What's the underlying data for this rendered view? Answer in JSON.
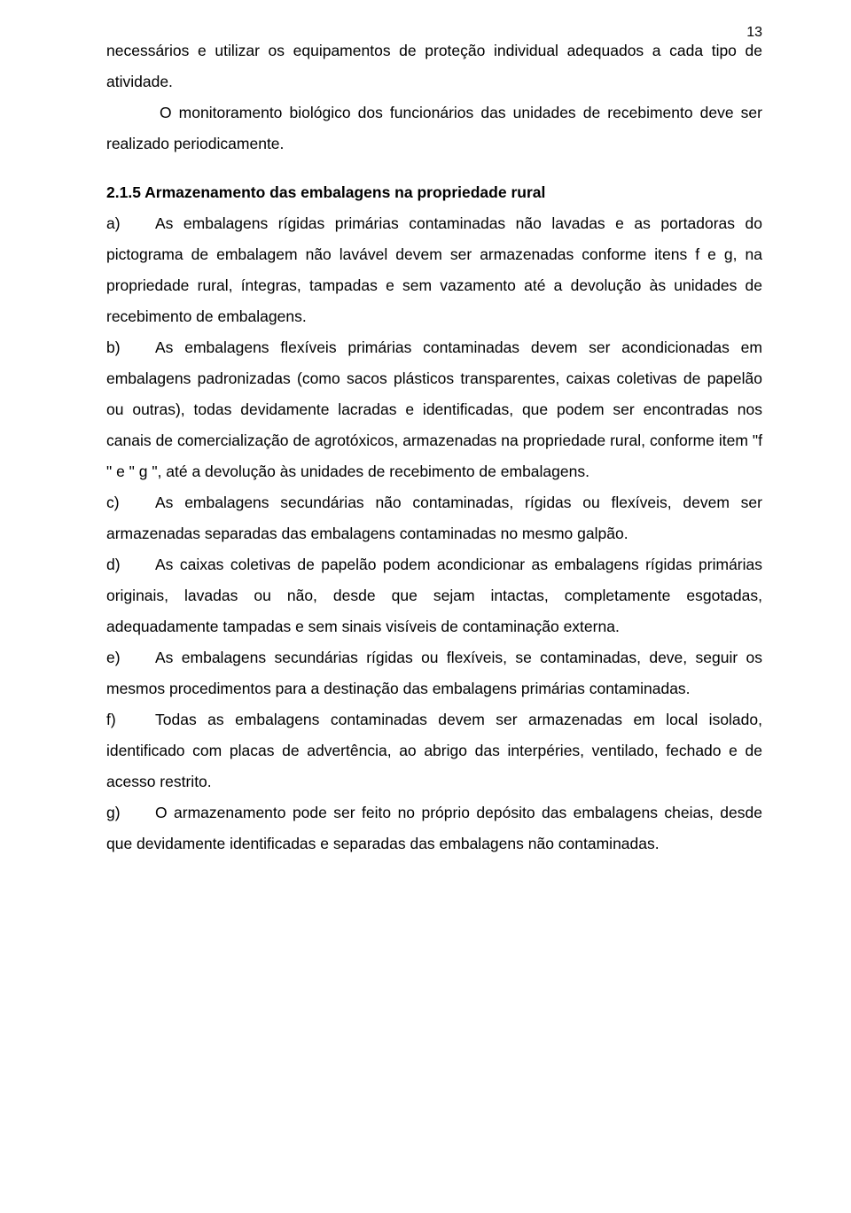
{
  "page_number": "13",
  "typography": {
    "font_family": "Arial",
    "body_fontsize_pt": 13,
    "line_height": 2.0,
    "text_color": "#000000",
    "background_color": "#ffffff",
    "heading_weight": "bold",
    "alignment": "justify"
  },
  "continued_para_1": "necessários e utilizar os equipamentos de proteção individual adequados a cada tipo de atividade.",
  "continued_para_2": "O monitoramento biológico dos funcionários das unidades de recebimento deve ser realizado periodicamente.",
  "section_heading": "2.1.5 Armazenamento das embalagens na propriedade rural",
  "items": {
    "a": {
      "label": "a)",
      "text": "As embalagens rígidas primárias contaminadas não lavadas e as portadoras do pictograma de embalagem não lavável devem ser armazenadas conforme itens f e g, na propriedade rural, íntegras, tampadas e sem vazamento até a devolução às unidades de recebimento de embalagens."
    },
    "b": {
      "label": "b)",
      "text": "As embalagens flexíveis primárias contaminadas devem ser acondicionadas em embalagens padronizadas (como sacos plásticos transparentes, caixas coletivas de papelão ou outras), todas devidamente lacradas e identificadas, que podem ser encontradas nos canais de comercialização de agrotóxicos, armazenadas na propriedade rural, conforme item \"f \" e \" g \", até a devolução às unidades de recebimento de embalagens."
    },
    "c": {
      "label": "c)",
      "text": "As embalagens secundárias não contaminadas, rígidas ou flexíveis, devem ser armazenadas separadas das embalagens contaminadas no mesmo galpão."
    },
    "d": {
      "label": "d)",
      "text": "As caixas coletivas de papelão podem acondicionar as embalagens rígidas primárias originais, lavadas ou não, desde que sejam intactas, completamente esgotadas, adequadamente tampadas e sem sinais visíveis de contaminação externa."
    },
    "e": {
      "label": "e)",
      "text": "As embalagens secundárias rígidas ou flexíveis, se contaminadas, deve, seguir os mesmos procedimentos para a destinação das embalagens primárias contaminadas."
    },
    "f": {
      "label": "f)",
      "text": "Todas as embalagens contaminadas devem ser armazenadas em local isolado, identificado com placas de advertência, ao abrigo das interpéries, ventilado, fechado e de acesso restrito."
    },
    "g": {
      "label": "g)",
      "text": "O armazenamento pode ser feito no próprio depósito das embalagens cheias, desde que devidamente identificadas e separadas das embalagens não contaminadas."
    }
  }
}
